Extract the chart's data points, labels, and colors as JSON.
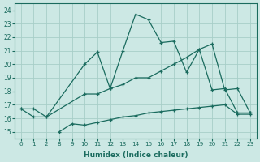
{
  "xlabel": "Humidex (Indice chaleur)",
  "bg_color": "#cce8e4",
  "grid_color": "#a8cec8",
  "line_color": "#1a6b5e",
  "ylim": [
    14.5,
    24.5
  ],
  "yticks": [
    15,
    16,
    17,
    18,
    19,
    20,
    21,
    22,
    23,
    24
  ],
  "xlabels": [
    "0",
    "1",
    "2",
    "8",
    "9",
    "10",
    "11",
    "12",
    "13",
    "14",
    "15",
    "16",
    "17",
    "18",
    "19",
    "20",
    "21",
    "22",
    "23"
  ],
  "n_xticks": 19,
  "line1_xi": [
    0,
    1,
    2,
    5,
    6,
    7,
    8,
    9,
    10,
    11,
    12,
    13,
    14,
    15,
    16,
    17,
    18
  ],
  "line1_y": [
    16.7,
    16.7,
    16.1,
    20.0,
    20.9,
    18.2,
    21.0,
    23.7,
    23.3,
    21.6,
    21.7,
    19.4,
    21.1,
    18.1,
    18.2,
    16.4,
    16.4
  ],
  "line2_xi": [
    0,
    1,
    2,
    5,
    6,
    7,
    8,
    9,
    10,
    11,
    12,
    13,
    14,
    15,
    16,
    17,
    18
  ],
  "line2_y": [
    16.7,
    16.1,
    16.1,
    17.8,
    17.8,
    18.2,
    18.5,
    19.0,
    19.0,
    19.5,
    20.0,
    20.5,
    21.1,
    21.5,
    18.1,
    18.2,
    16.4
  ],
  "line3_xi": [
    3,
    4,
    5,
    6,
    7,
    8,
    9,
    10,
    11,
    12,
    13,
    14,
    15,
    16,
    17,
    18
  ],
  "line3_y": [
    15.0,
    15.6,
    15.5,
    15.7,
    15.9,
    16.1,
    16.2,
    16.4,
    16.5,
    16.6,
    16.7,
    16.8,
    16.9,
    17.0,
    16.3,
    16.3
  ]
}
